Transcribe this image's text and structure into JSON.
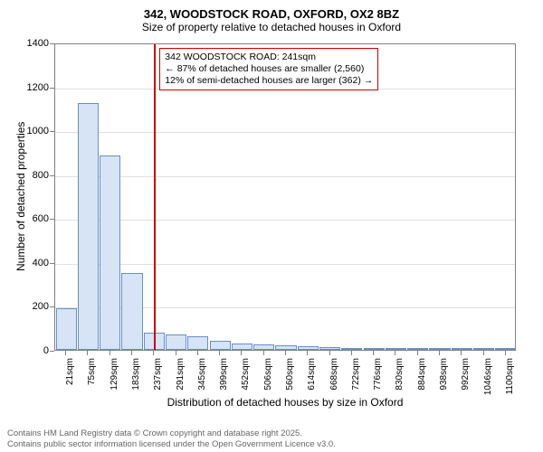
{
  "header": {
    "title": "342, WOODSTOCK ROAD, OXFORD, OX2 8BZ",
    "subtitle": "Size of property relative to detached houses in Oxford"
  },
  "chart": {
    "type": "histogram",
    "background_color": "#ffffff",
    "grid_color": "#e0e0e0",
    "border_color": "#808080",
    "bar_fill": "#d6e4f5",
    "bar_border": "#6a8fc3",
    "marker_color": "#cc0000",
    "ylabel": "Number of detached properties",
    "xlabel": "Distribution of detached houses by size in Oxford",
    "ylim": [
      0,
      1400
    ],
    "ytick_step": 200,
    "yticks": [
      0,
      200,
      400,
      600,
      800,
      1000,
      1200,
      1400
    ],
    "label_fontsize": 12,
    "tick_fontsize": 11,
    "x_tick_fontsize": 10,
    "bar_width": 0.95,
    "bins": [
      {
        "label": "21sqm",
        "value": 190
      },
      {
        "label": "75sqm",
        "value": 1125
      },
      {
        "label": "129sqm",
        "value": 885
      },
      {
        "label": "183sqm",
        "value": 350
      },
      {
        "label": "237sqm",
        "value": 80
      },
      {
        "label": "291sqm",
        "value": 70
      },
      {
        "label": "345sqm",
        "value": 60
      },
      {
        "label": "399sqm",
        "value": 40
      },
      {
        "label": "452sqm",
        "value": 30
      },
      {
        "label": "506sqm",
        "value": 25
      },
      {
        "label": "560sqm",
        "value": 20
      },
      {
        "label": "614sqm",
        "value": 15
      },
      {
        "label": "668sqm",
        "value": 12
      },
      {
        "label": "722sqm",
        "value": 10
      },
      {
        "label": "776sqm",
        "value": 8
      },
      {
        "label": "830sqm",
        "value": 6
      },
      {
        "label": "884sqm",
        "value": 5
      },
      {
        "label": "938sqm",
        "value": 4
      },
      {
        "label": "992sqm",
        "value": 3
      },
      {
        "label": "1046sqm",
        "value": 2
      },
      {
        "label": "1100sqm",
        "value": 2
      }
    ],
    "marker": {
      "bin_index": 4,
      "value_sqm": 241
    },
    "annotation": {
      "line1": "342 WOODSTOCK ROAD: 241sqm",
      "line2": "← 87% of detached houses are smaller (2,560)",
      "line3": "12% of semi-detached houses are larger (362) →",
      "text_color": "#000000",
      "border_color": "#cc0000",
      "fontsize": 10.5
    }
  },
  "footer": {
    "line1": "Contains HM Land Registry data © Crown copyright and database right 2025.",
    "line2": "Contains public sector information licensed under the Open Government Licence v3.0.",
    "text_color": "#666666",
    "fontsize": 9.5
  }
}
